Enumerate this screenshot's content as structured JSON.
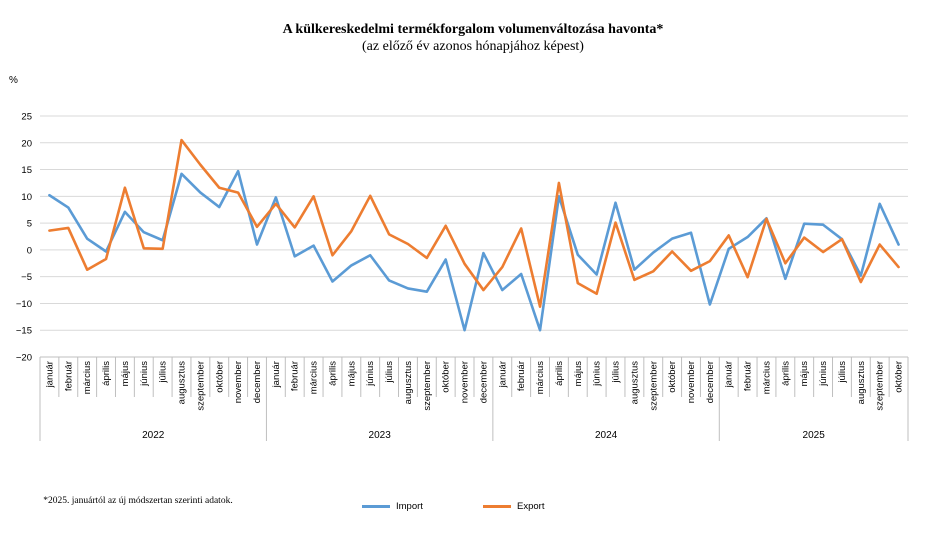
{
  "colors": {
    "import": "#5b9bd5",
    "export": "#ed7d31",
    "grid": "#d9d9d9",
    "axis": "#bfbfbf"
  },
  "footnote": "*2025. januártól az új módszertan szerinti adatok.",
  "chart_data": {
    "type": "line",
    "title": "A külkereskedelmi termékforgalom  volumenváltozása havonta*",
    "subtitle": "(az előző év azonos hónapjához képest)",
    "ylabel": "%",
    "ylim": [
      -20,
      25
    ],
    "yticks": [
      -20,
      -15,
      -10,
      -5,
      0,
      5,
      10,
      15,
      20,
      25
    ],
    "grid": true,
    "legend_position": "bottom",
    "years": [
      "2022",
      "2023",
      "2024",
      "2025"
    ],
    "months_per_year": [
      12,
      12,
      12,
      10
    ],
    "categories": [
      "január",
      "február",
      "március",
      "április",
      "május",
      "június",
      "július",
      "augusztus",
      "szeptember",
      "október",
      "november",
      "december",
      "január",
      "február",
      "március",
      "április",
      "május",
      "június",
      "július",
      "augusztus",
      "szeptember",
      "október",
      "november",
      "december",
      "január",
      "február",
      "március",
      "április",
      "május",
      "június",
      "július",
      "augusztus",
      "szeptember",
      "október",
      "november",
      "december",
      "január",
      "február",
      "március",
      "április",
      "május",
      "június",
      "július",
      "augusztus",
      "szeptember",
      "október"
    ],
    "series": [
      {
        "name": "Import",
        "values": [
          10.2,
          7.9,
          2.1,
          -0.3,
          7.1,
          3.3,
          1.8,
          14.2,
          10.7,
          8.0,
          14.7,
          1.0,
          9.8,
          -1.2,
          0.8,
          -5.9,
          -2.9,
          -1.0,
          -5.7,
          -7.2,
          -7.8,
          -1.8,
          -15.0,
          -0.6,
          -7.5,
          -4.5,
          -15.0,
          10.0,
          -0.9,
          -4.6,
          8.8,
          -3.7,
          -0.5,
          2.1,
          3.2,
          -10.2,
          0.2,
          2.4,
          5.9,
          -5.4,
          4.9,
          4.7,
          2.0,
          -4.8,
          8.6,
          1.0
        ]
      },
      {
        "name": "Export",
        "values": [
          3.6,
          4.1,
          -3.7,
          -1.7,
          11.6,
          0.3,
          0.2,
          20.5,
          15.9,
          11.6,
          10.7,
          4.3,
          8.6,
          4.2,
          10.0,
          -1.0,
          3.5,
          10.1,
          2.9,
          1.1,
          -1.5,
          4.5,
          -2.6,
          -7.5,
          -3.2,
          4.0,
          -10.6,
          12.5,
          -6.2,
          -8.2,
          5.1,
          -5.6,
          -4.0,
          -0.3,
          -3.9,
          -2.1,
          2.7,
          -5.1,
          5.8,
          -2.5,
          2.3,
          -0.4,
          2.0,
          -6.0,
          1.0,
          -3.2
        ]
      }
    ]
  }
}
